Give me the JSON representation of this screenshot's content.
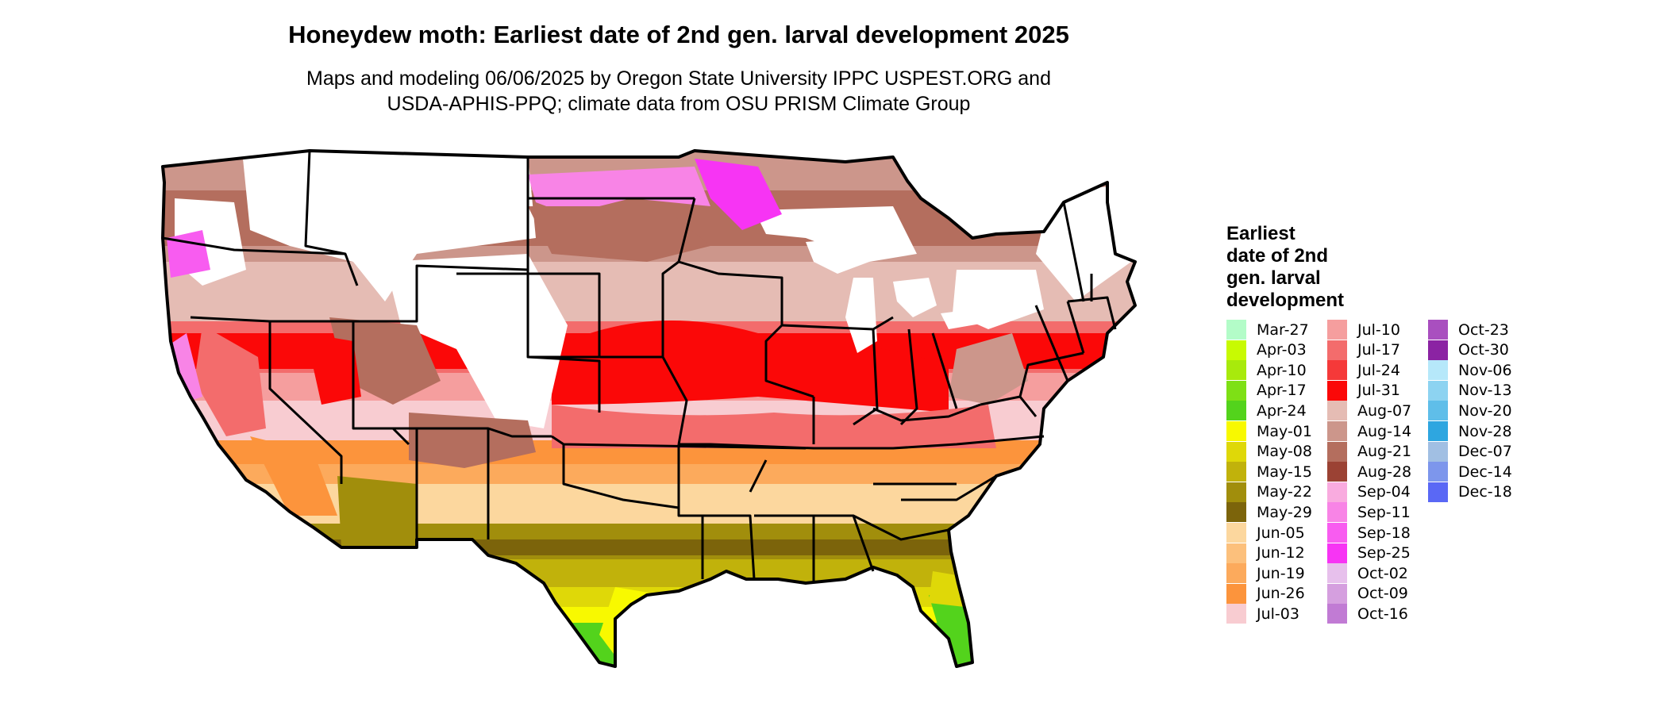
{
  "title": "Honeydew moth: Earliest date of 2nd gen. larval development 2025",
  "subtitle_line1": "Maps and modeling 06/06/2025 by Oregon State University IPPC USPEST.ORG and",
  "subtitle_line2": "USDA-APHIS-PPQ; climate data from OSU PRISM Climate Group",
  "legend": {
    "title_lines": [
      "Earliest",
      "date of 2nd",
      "gen. larval",
      "development"
    ],
    "columns": [
      [
        {
          "label": "Mar-27",
          "color": "#b3fcc8"
        },
        {
          "label": "Apr-03",
          "color": "#c8fa02"
        },
        {
          "label": "Apr-10",
          "color": "#a8ea0c"
        },
        {
          "label": "Apr-17",
          "color": "#7ee015"
        },
        {
          "label": "Apr-24",
          "color": "#53d31c"
        },
        {
          "label": "May-01",
          "color": "#f8f900"
        },
        {
          "label": "May-08",
          "color": "#dfd808"
        },
        {
          "label": "May-15",
          "color": "#c1b20b"
        },
        {
          "label": "May-22",
          "color": "#a18e0c"
        },
        {
          "label": "May-29",
          "color": "#7c640b"
        },
        {
          "label": "Jun-05",
          "color": "#fcd79e"
        },
        {
          "label": "Jun-12",
          "color": "#fcc07c"
        },
        {
          "label": "Jun-19",
          "color": "#fcaa5c"
        },
        {
          "label": "Jun-26",
          "color": "#fc943c"
        },
        {
          "label": "Jul-03",
          "color": "#f8ccd1"
        }
      ],
      [
        {
          "label": "Jul-10",
          "color": "#f59e9e"
        },
        {
          "label": "Jul-17",
          "color": "#f36c6c"
        },
        {
          "label": "Jul-24",
          "color": "#f53939"
        },
        {
          "label": "Jul-31",
          "color": "#fb0808"
        },
        {
          "label": "Aug-07",
          "color": "#e5bcb4"
        },
        {
          "label": "Aug-14",
          "color": "#cc968b"
        },
        {
          "label": "Aug-21",
          "color": "#b46e5e"
        },
        {
          "label": "Aug-28",
          "color": "#9b4234"
        },
        {
          "label": "Sep-04",
          "color": "#f9abdf"
        },
        {
          "label": "Sep-11",
          "color": "#f884e6"
        },
        {
          "label": "Sep-18",
          "color": "#f85cf0"
        },
        {
          "label": "Sep-25",
          "color": "#f734f4"
        },
        {
          "label": "Oct-02",
          "color": "#e7c0ec"
        },
        {
          "label": "Oct-09",
          "color": "#d59fdf"
        },
        {
          "label": "Oct-16",
          "color": "#c17bd4"
        }
      ],
      [
        {
          "label": "Oct-23",
          "color": "#a94fbf"
        },
        {
          "label": "Oct-30",
          "color": "#8b23a3"
        },
        {
          "label": "Nov-06",
          "color": "#b6e8fa"
        },
        {
          "label": "Nov-13",
          "color": "#8dd3f1"
        },
        {
          "label": "Nov-20",
          "color": "#5fbee9"
        },
        {
          "label": "Nov-28",
          "color": "#2ea6e0"
        },
        {
          "label": "Dec-07",
          "color": "#a1bfe3"
        },
        {
          "label": "Dec-14",
          "color": "#7d96ec"
        },
        {
          "label": "Dec-18",
          "color": "#5a68f5"
        }
      ]
    ]
  }
}
